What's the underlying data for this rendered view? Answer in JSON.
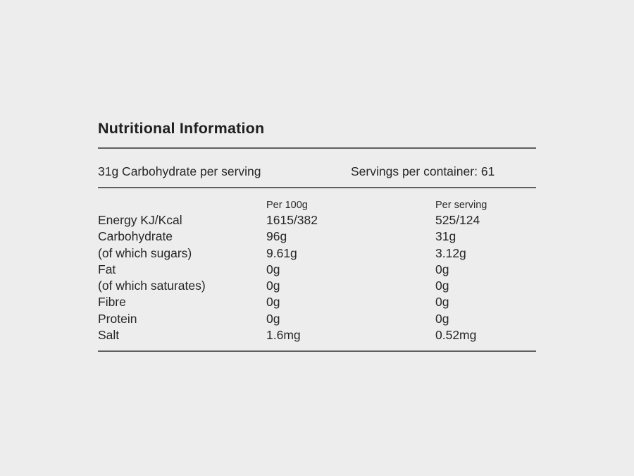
{
  "page": {
    "background_color": "#ededed",
    "text_color": "#262626",
    "divider_color": "#5f5f5f"
  },
  "title": "Nutritional Information",
  "serving_info": {
    "carb_per_serving": "31g Carbohydrate per serving",
    "servings_per_container": "Servings per container: 61"
  },
  "nutrition_table": {
    "column_headers": {
      "per_100g": "Per 100g",
      "per_serving": "Per serving"
    },
    "rows": [
      {
        "label": "Energy KJ/Kcal",
        "per_100g": "1615/382",
        "per_serving": "525/124"
      },
      {
        "label": "Carbohydrate",
        "per_100g": "96g",
        "per_serving": "31g"
      },
      {
        "label": "(of which sugars)",
        "per_100g": "9.61g",
        "per_serving": "3.12g"
      },
      {
        "label": "Fat",
        "per_100g": "0g",
        "per_serving": "0g"
      },
      {
        "label": "(of which saturates)",
        "per_100g": "0g",
        "per_serving": "0g"
      },
      {
        "label": "Fibre",
        "per_100g": "0g",
        "per_serving": "0g"
      },
      {
        "label": "Protein",
        "per_100g": "0g",
        "per_serving": "0g"
      },
      {
        "label": "Salt",
        "per_100g": "1.6mg",
        "per_serving": "0.52mg"
      }
    ]
  }
}
